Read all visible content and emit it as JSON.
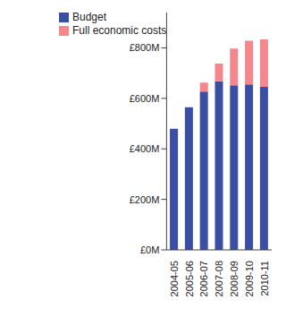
{
  "chart_data": {
    "type": "bar",
    "stacked": true,
    "legend": "upper left",
    "categories": [
      "2004-05",
      "2005-06",
      "2006-07",
      "2007-08",
      "2008-09",
      "2009-10",
      "2010-11"
    ],
    "series": [
      {
        "name": "Budget",
        "color": "#3a4ea4",
        "values": [
          480,
          565,
          627,
          668,
          652,
          655,
          646
        ]
      },
      {
        "name": "Full economic costs",
        "color": "#f3878b",
        "values": [
          0,
          0,
          35,
          70,
          145,
          173,
          188
        ]
      }
    ],
    "ylim": [
      0,
      940
    ],
    "yticks": [
      {
        "value": 0,
        "label": "£0M"
      },
      {
        "value": 200,
        "label": "£200M"
      },
      {
        "value": 400,
        "label": "£400M"
      },
      {
        "value": 600,
        "label": "£600M"
      },
      {
        "value": 800,
        "label": "£800M"
      }
    ]
  }
}
